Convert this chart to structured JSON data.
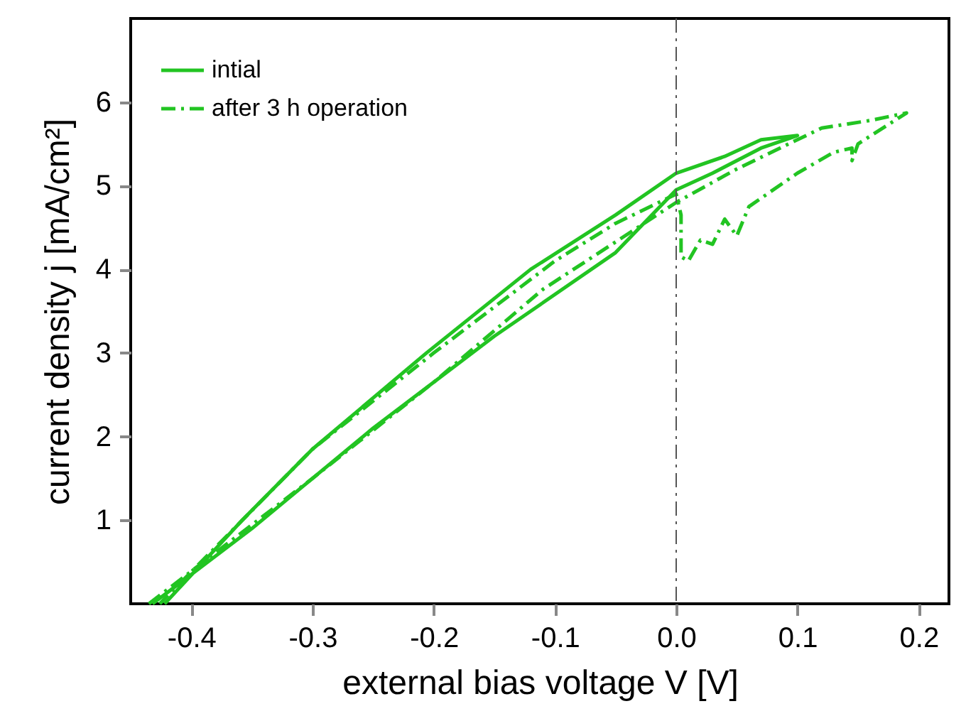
{
  "chart_data": {
    "type": "line",
    "xlabel": "external bias voltage V [V]",
    "ylabel": "current density j [mA/cm²]",
    "xlim": [
      -0.45,
      0.225
    ],
    "ylim": [
      0,
      7
    ],
    "xticks": [
      -0.4,
      -0.3,
      -0.2,
      -0.1,
      {
        "value": 0,
        "label": "0.0"
      },
      0.1,
      0.2
    ],
    "yticks": [
      1,
      2,
      3,
      4,
      5,
      6
    ],
    "legend": "top left",
    "grid": false,
    "marker": "none",
    "ref_lines": [
      {
        "axis": "x",
        "value": 0,
        "color": "#555555",
        "line_style": "dashdot"
      }
    ],
    "series": [
      {
        "name": "intial",
        "color": "#22c422",
        "line_style": "solid",
        "x": [
          -0.432,
          -0.35,
          -0.25,
          -0.15,
          -0.05,
          0.0,
          0.03,
          0.07,
          0.1,
          0.07,
          0.04,
          0.0,
          -0.05,
          -0.12,
          -0.206,
          -0.3,
          -0.358,
          -0.422
        ],
        "values": [
          0,
          0.9,
          2.1,
          3.2,
          4.2,
          4.95,
          5.15,
          5.45,
          5.6,
          5.55,
          5.35,
          5.15,
          4.65,
          4.0,
          3.0,
          1.85,
          1.0,
          0
        ]
      },
      {
        "name": "after 3 h operation",
        "color": "#22c422",
        "line_style": "dashdot",
        "x": [
          -0.435,
          -0.3,
          -0.2,
          -0.11,
          0.0,
          0.05,
          0.12,
          0.16,
          0.19,
          0.15,
          0.145,
          0.145,
          0.13,
          0.1,
          0.075,
          0.06,
          0.05,
          0.04,
          0.03,
          0.02,
          0.01,
          0.004,
          0.004,
          0.0,
          -0.05,
          -0.1,
          -0.2,
          -0.3,
          -0.426
        ],
        "values": [
          0,
          1.5,
          2.65,
          3.76,
          4.8,
          5.2,
          5.69,
          5.78,
          5.87,
          5.5,
          5.3,
          5.45,
          5.4,
          5.15,
          4.9,
          4.75,
          4.4,
          4.6,
          4.3,
          4.35,
          4.1,
          4.15,
          4.65,
          4.9,
          4.55,
          4.1,
          3.0,
          1.85,
          0
        ]
      }
    ]
  }
}
